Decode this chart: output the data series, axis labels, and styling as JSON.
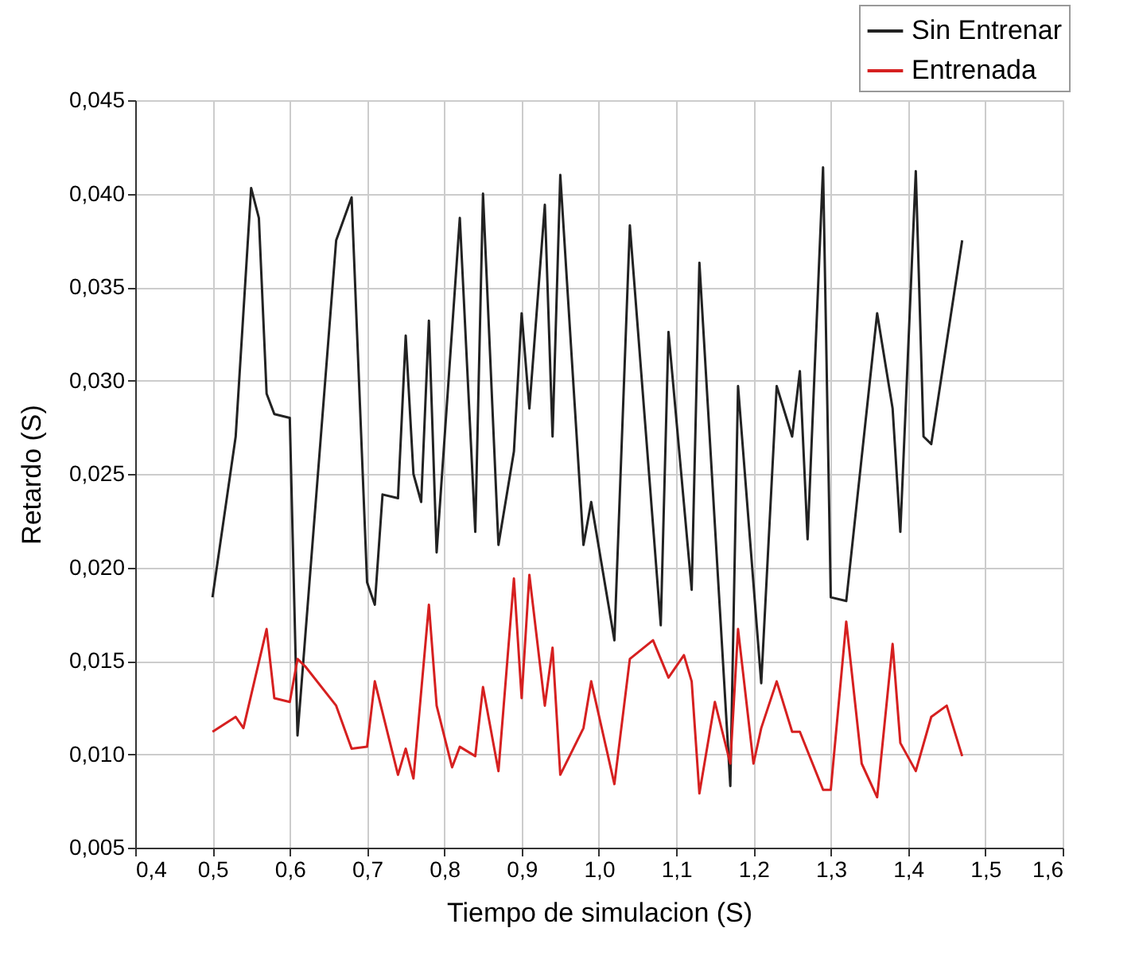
{
  "chart_data": {
    "type": "line",
    "xlabel": "Tiempo de simulacion (S)",
    "ylabel": "Retardo (S)",
    "xlim": [
      0.4,
      1.6
    ],
    "ylim": [
      0.005,
      0.045
    ],
    "xticks": [
      {
        "value": 0.4,
        "label": "0,4"
      },
      {
        "value": 0.5,
        "label": "0,5"
      },
      {
        "value": 0.6,
        "label": "0,6"
      },
      {
        "value": 0.7,
        "label": "0,7"
      },
      {
        "value": 0.8,
        "label": "0,8"
      },
      {
        "value": 0.9,
        "label": "0,9"
      },
      {
        "value": 1.0,
        "label": "1,0"
      },
      {
        "value": 1.1,
        "label": "1,1"
      },
      {
        "value": 1.2,
        "label": "1,2"
      },
      {
        "value": 1.3,
        "label": "1,3"
      },
      {
        "value": 1.4,
        "label": "1,4"
      },
      {
        "value": 1.5,
        "label": "1,5"
      },
      {
        "value": 1.6,
        "label": "1,6"
      }
    ],
    "yticks": [
      {
        "value": 0.005,
        "label": "0,005"
      },
      {
        "value": 0.01,
        "label": "0,010"
      },
      {
        "value": 0.015,
        "label": "0,015"
      },
      {
        "value": 0.02,
        "label": "0,020"
      },
      {
        "value": 0.025,
        "label": "0,025"
      },
      {
        "value": 0.03,
        "label": "0,030"
      },
      {
        "value": 0.035,
        "label": "0,035"
      },
      {
        "value": 0.04,
        "label": "0,040"
      },
      {
        "value": 0.045,
        "label": "0,045"
      }
    ],
    "grid": true,
    "legend": "top right",
    "marker": "none",
    "line_style": "solid",
    "series": [
      {
        "name": "Sin Entrenar",
        "color": "#222222",
        "x": [
          0.5,
          0.53,
          0.55,
          0.56,
          0.57,
          0.58,
          0.6,
          0.61,
          0.66,
          0.68,
          0.7,
          0.71,
          0.72,
          0.74,
          0.75,
          0.76,
          0.77,
          0.78,
          0.79,
          0.82,
          0.84,
          0.85,
          0.87,
          0.89,
          0.9,
          0.91,
          0.93,
          0.94,
          0.95,
          0.98,
          0.99,
          1.02,
          1.04,
          1.08,
          1.09,
          1.12,
          1.13,
          1.17,
          1.18,
          1.21,
          1.23,
          1.25,
          1.26,
          1.27,
          1.29,
          1.3,
          1.32,
          1.36,
          1.38,
          1.39,
          1.41,
          1.42,
          1.43,
          1.47
        ],
        "values": [
          0.0184,
          0.027,
          0.0403,
          0.0387,
          0.0293,
          0.0282,
          0.028,
          0.011,
          0.0375,
          0.0398,
          0.0192,
          0.018,
          0.0239,
          0.0237,
          0.0324,
          0.025,
          0.0235,
          0.0332,
          0.0208,
          0.0387,
          0.0219,
          0.04,
          0.0212,
          0.0262,
          0.0336,
          0.0285,
          0.0394,
          0.027,
          0.041,
          0.0212,
          0.0235,
          0.0161,
          0.0383,
          0.0169,
          0.0326,
          0.0188,
          0.0363,
          0.0083,
          0.0297,
          0.0138,
          0.0297,
          0.027,
          0.0305,
          0.0215,
          0.0414,
          0.0184,
          0.0182,
          0.0336,
          0.0285,
          0.0219,
          0.0412,
          0.027,
          0.0266,
          0.0375
        ]
      },
      {
        "name": "Entrenada",
        "color": "#d62020",
        "x": [
          0.5,
          0.53,
          0.54,
          0.57,
          0.58,
          0.6,
          0.61,
          0.62,
          0.66,
          0.68,
          0.7,
          0.71,
          0.74,
          0.75,
          0.76,
          0.78,
          0.79,
          0.81,
          0.82,
          0.84,
          0.85,
          0.87,
          0.89,
          0.9,
          0.91,
          0.93,
          0.94,
          0.95,
          0.98,
          0.99,
          1.02,
          1.04,
          1.07,
          1.09,
          1.11,
          1.12,
          1.13,
          1.15,
          1.17,
          1.18,
          1.2,
          1.21,
          1.23,
          1.25,
          1.26,
          1.29,
          1.3,
          1.32,
          1.34,
          1.36,
          1.38,
          1.39,
          1.41,
          1.43,
          1.45,
          1.47
        ],
        "values": [
          0.0112,
          0.012,
          0.0114,
          0.0167,
          0.013,
          0.0128,
          0.0151,
          0.0147,
          0.0126,
          0.0103,
          0.0104,
          0.0139,
          0.0089,
          0.0103,
          0.0087,
          0.018,
          0.0126,
          0.0093,
          0.0104,
          0.0099,
          0.0136,
          0.0091,
          0.0194,
          0.013,
          0.0196,
          0.0126,
          0.0157,
          0.0089,
          0.0114,
          0.0139,
          0.0084,
          0.0151,
          0.0161,
          0.0141,
          0.0153,
          0.0139,
          0.0079,
          0.0128,
          0.0095,
          0.0167,
          0.0095,
          0.0114,
          0.0139,
          0.0112,
          0.0112,
          0.0081,
          0.0081,
          0.0171,
          0.0095,
          0.0077,
          0.0159,
          0.0106,
          0.0091,
          0.012,
          0.0126,
          0.0099
        ]
      }
    ]
  }
}
